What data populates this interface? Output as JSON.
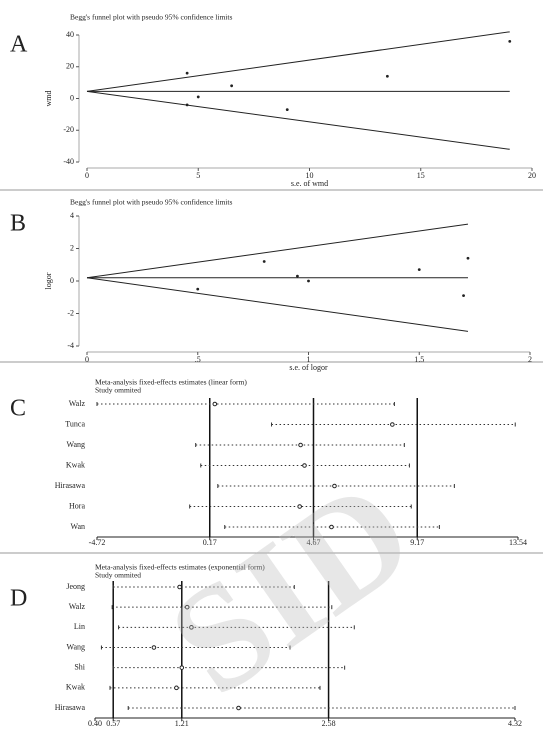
{
  "chart_data": [
    {
      "type": "funnel",
      "label": "A",
      "title": "Begg's funnel plot with pseudo 95% confidence limits",
      "x_label": "s.e. of wmd",
      "y_label": "wmd",
      "x": [
        4.5,
        4.5,
        5,
        6.5,
        9,
        13.5,
        19
      ],
      "values": [
        16,
        -4,
        1,
        8,
        -7,
        14,
        36
      ],
      "lines": [
        {
          "x": [
            0,
            19
          ],
          "values": [
            4.5,
            4.5
          ]
        },
        {
          "x": [
            0,
            19
          ],
          "values": [
            4.5,
            42
          ]
        },
        {
          "x": [
            0,
            19
          ],
          "values": [
            4.5,
            -32
          ]
        }
      ],
      "xlim": [
        0,
        20
      ],
      "xticks": [
        0,
        5,
        10,
        15,
        20
      ],
      "ylim": [
        -40,
        40
      ],
      "yticks": [
        -40,
        -20,
        0,
        20,
        40
      ]
    },
    {
      "type": "funnel",
      "label": "B",
      "title": "Begg's funnel plot with pseudo 95% confidence limits",
      "x_label": "s.e. of logor",
      "y_label": "logor",
      "x": [
        0.5,
        0.8,
        0.95,
        1.0,
        1.5,
        1.7,
        1.72
      ],
      "values": [
        -0.5,
        1.2,
        0.3,
        0,
        0.7,
        -0.9,
        1.4
      ],
      "lines": [
        {
          "x": [
            0,
            1.72
          ],
          "values": [
            0.2,
            0.2
          ]
        },
        {
          "x": [
            0,
            1.72
          ],
          "values": [
            0.2,
            3.5
          ]
        },
        {
          "x": [
            0,
            1.72
          ],
          "values": [
            0.2,
            -3.1
          ]
        }
      ],
      "xlim": [
        0,
        2
      ],
      "xticks": [
        0,
        {
          "value": 0.5,
          "label": ".5"
        },
        1,
        1.5,
        2
      ],
      "ylim": [
        -4,
        4
      ],
      "yticks": [
        -4,
        -2,
        0,
        2,
        4
      ]
    },
    {
      "type": "forest",
      "label": "C",
      "title": "Meta-analysis fixed-effects estimates (linear form)",
      "subtitle": "Study ommited",
      "categories": [
        "Walz",
        "Tunca",
        "Wang",
        "Kwak",
        "Hirasawa",
        "Hora",
        "Wan"
      ],
      "values": [
        0.39,
        8.09,
        4.11,
        4.28,
        5.58,
        4.07,
        5.45
      ],
      "lower": [
        -4.72,
        2.85,
        -0.44,
        -0.22,
        0.52,
        -0.7,
        0.82
      ],
      "upper": [
        8.18,
        13.42,
        8.61,
        8.83,
        10.78,
        8.91,
        10.13
      ],
      "summary": {
        "lower": 0.17,
        "estimate": 4.67,
        "upper": 9.17
      },
      "xlim": [
        -4.72,
        13.54
      ],
      "xticks": [
        -4.72,
        0.17,
        4.67,
        9.17,
        13.54
      ]
    },
    {
      "type": "forest",
      "label": "D",
      "title": "Meta-analysis fixed-effects estimates (exponential form)",
      "subtitle": "Study ommited",
      "categories": [
        "Jeong",
        "Walz",
        "Lin",
        "Wang",
        "Shi",
        "Kwak",
        "Hirasawa"
      ],
      "values": [
        1.19,
        1.26,
        1.3,
        0.95,
        1.21,
        1.16,
        1.74
      ],
      "lower": [
        0.57,
        0.56,
        0.62,
        0.46,
        0.57,
        0.54,
        0.71
      ],
      "upper": [
        2.26,
        2.61,
        2.82,
        2.22,
        2.73,
        2.5,
        4.32
      ],
      "summary": {
        "lower": 0.57,
        "estimate": 1.21,
        "upper": 2.58
      },
      "xlim": [
        {
          "value": 0.4,
          "label": "0.40"
        },
        4.32
      ],
      "xticks": [
        {
          "value": 0.4,
          "label": "0.40"
        },
        0.57,
        1.21,
        2.58,
        4.32
      ]
    }
  ],
  "watermark": "SID"
}
